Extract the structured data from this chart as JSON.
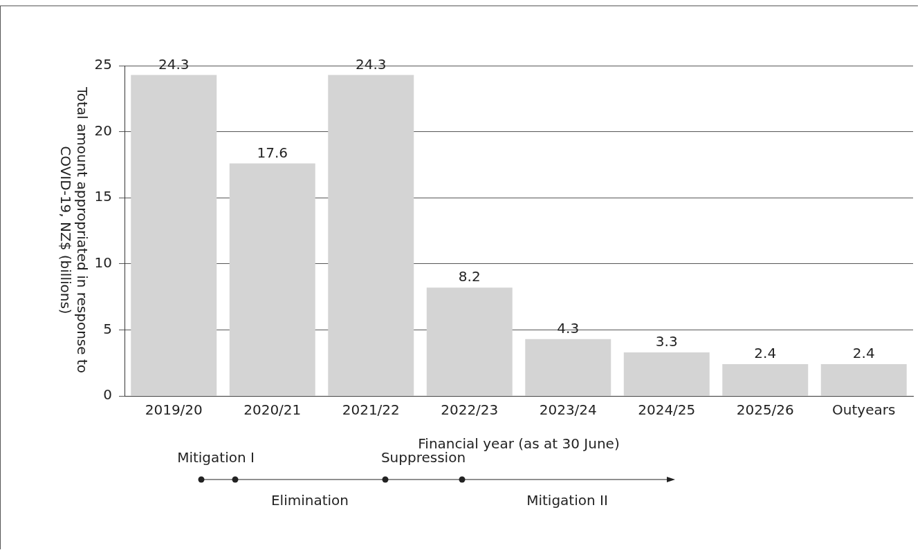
{
  "chart_data": {
    "type": "bar",
    "xlabel": "Financial year (as at 30 June)",
    "ylabel": "Total amount appropriated in response to COVID-19, NZ$ (billions)",
    "categories": [
      "2019/20",
      "2020/21",
      "2021/22",
      "2022/23",
      "2023/24",
      "2024/25",
      "2025/26",
      "Outyears"
    ],
    "values": [
      24.3,
      17.6,
      24.3,
      8.2,
      4.3,
      3.3,
      2.4,
      2.4
    ],
    "color": "#d4d4d4",
    "ylim": [
      0,
      25
    ],
    "yticks": [
      0,
      5,
      10,
      15,
      20,
      25
    ],
    "grid": "y",
    "legend": false,
    "data_labels": true,
    "annotations": [
      "Mitigation I",
      "Elimination",
      "Suppression",
      "Mitigation II"
    ]
  }
}
